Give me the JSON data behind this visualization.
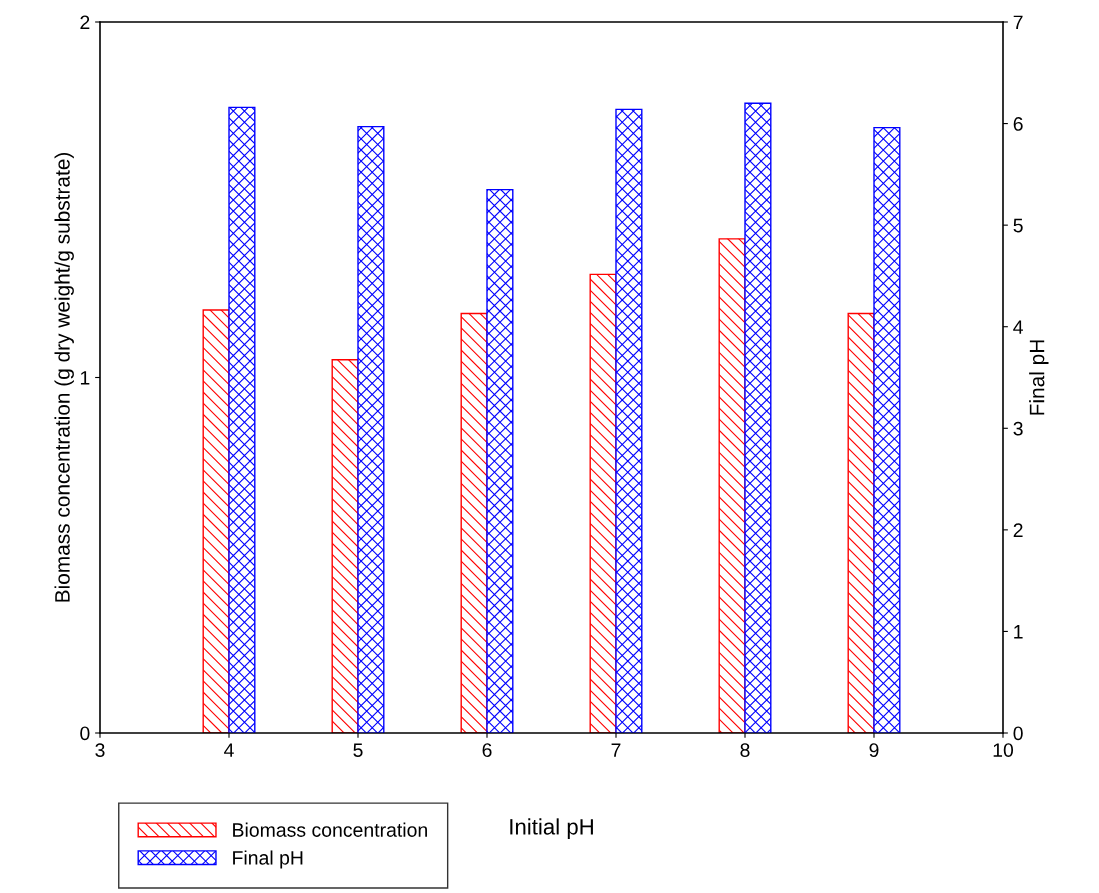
{
  "chart_data": {
    "type": "bar",
    "xlabel": "Initial pH",
    "ylabel": "Biomass concentration (g dry weight/g substrate)",
    "y2label": "Final pH",
    "x": [
      4,
      5,
      6,
      7,
      8,
      9
    ],
    "series": [
      {
        "name": "Biomass concentration",
        "color": "#ff0000",
        "values": [
          1.19,
          1.05,
          1.18,
          1.29,
          1.39,
          1.18
        ]
      },
      {
        "name": "Final pH",
        "color": "#0000ff",
        "axis": "y2",
        "values": [
          6.16,
          5.97,
          5.35,
          6.14,
          6.2,
          5.96
        ]
      }
    ],
    "xlim": [
      3,
      10
    ],
    "xticks": [
      3,
      4,
      5,
      6,
      7,
      8,
      9,
      10
    ],
    "ylim": [
      0,
      2
    ],
    "yticks": [
      0,
      1,
      2
    ],
    "y2lim": [
      0,
      7
    ],
    "y2ticks": [
      0,
      1,
      2,
      3,
      4,
      5,
      6,
      7
    ],
    "grid": false,
    "legend": "bottom left"
  }
}
